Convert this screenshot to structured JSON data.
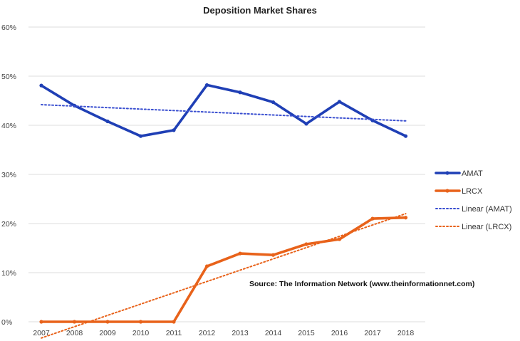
{
  "chart_data": {
    "type": "line",
    "title": "Deposition Market Shares",
    "xlabel": "",
    "ylabel": "",
    "x": [
      "2007",
      "2008",
      "2009",
      "2010",
      "2011",
      "2012",
      "2013",
      "2014",
      "2015",
      "2016",
      "2017",
      "2018"
    ],
    "ylim": [
      0,
      60
    ],
    "y_ticks": [
      "0%",
      "10%",
      "20%",
      "30%",
      "40%",
      "50%",
      "60%"
    ],
    "y_tick_values": [
      0,
      10,
      20,
      30,
      40,
      50,
      60
    ],
    "grid": true,
    "legend_position": "right",
    "series": [
      {
        "name": "AMAT",
        "color": "#1f3fb5",
        "style": "solid",
        "values": [
          48.1,
          44.0,
          40.8,
          37.8,
          39.0,
          48.2,
          46.7,
          44.7,
          40.3,
          44.8,
          41.0,
          37.8
        ]
      },
      {
        "name": "LRCX",
        "color": "#e8621a",
        "style": "solid",
        "values": [
          0,
          0,
          0,
          0,
          0,
          11.3,
          13.9,
          13.6,
          15.8,
          16.8,
          21.0,
          21.2
        ]
      },
      {
        "name": "Linear  (AMAT)",
        "color": "#3a4fd0",
        "style": "dotted",
        "values": [
          44.2,
          43.9,
          43.6,
          43.3,
          43.0,
          42.7,
          42.4,
          42.1,
          41.8,
          41.5,
          41.2,
          40.9
        ]
      },
      {
        "name": "Linear  (LRCX)",
        "color": "#e8621a",
        "style": "dotted",
        "values": [
          -3.3,
          -1.0,
          1.3,
          3.6,
          5.9,
          8.2,
          10.5,
          12.8,
          15.1,
          17.4,
          19.7,
          22.0
        ]
      }
    ],
    "annotations": [
      "Source: The Information  Network (www.theinformationnet.com)"
    ]
  }
}
